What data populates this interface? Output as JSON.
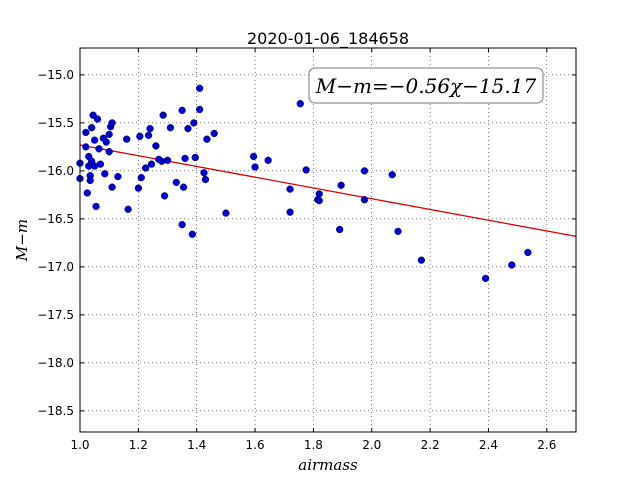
{
  "chart_data": {
    "type": "scatter",
    "title": "2020-01-06_184658",
    "xlabel": "airmass",
    "ylabel": "M−m",
    "xlim": [
      1.0,
      2.7
    ],
    "ylim": [
      -18.72,
      -14.72
    ],
    "y_inverted": true,
    "grid": true,
    "xticks": [
      1.0,
      1.2,
      1.4,
      1.6,
      1.8,
      2.0,
      2.2,
      2.4,
      2.6
    ],
    "xtick_labels": [
      "1.0",
      "1.2",
      "1.4",
      "1.6",
      "1.8",
      "2.0",
      "2.2",
      "2.4",
      "2.6"
    ],
    "yticks": [
      -15.0,
      -15.5,
      -16.0,
      -16.5,
      -17.0,
      -17.5,
      -18.0,
      -18.5
    ],
    "ytick_labels": [
      "−15.0",
      "−15.5",
      "−16.0",
      "−16.5",
      "−17.0",
      "−17.5",
      "−18.0",
      "−18.5"
    ],
    "annotation": "M−m=−0.56χ−15.17",
    "fit_line": {
      "slope": -0.56,
      "intercept": -15.17,
      "color": "#dd0000"
    },
    "point_color": "#0000cc",
    "points": [
      [
        1.0,
        -15.92
      ],
      [
        1.0,
        -16.08
      ],
      [
        1.02,
        -15.6
      ],
      [
        1.02,
        -15.75
      ],
      [
        1.025,
        -16.23
      ],
      [
        1.03,
        -15.85
      ],
      [
        1.03,
        -15.95
      ],
      [
        1.035,
        -16.05
      ],
      [
        1.035,
        -16.1
      ],
      [
        1.04,
        -15.55
      ],
      [
        1.04,
        -15.9
      ],
      [
        1.045,
        -15.42
      ],
      [
        1.05,
        -15.95
      ],
      [
        1.05,
        -15.68
      ],
      [
        1.055,
        -16.37
      ],
      [
        1.06,
        -15.46
      ],
      [
        1.065,
        -15.77
      ],
      [
        1.07,
        -15.93
      ],
      [
        1.08,
        -15.66
      ],
      [
        1.085,
        -16.03
      ],
      [
        1.09,
        -15.7
      ],
      [
        1.1,
        -15.62
      ],
      [
        1.1,
        -15.8
      ],
      [
        1.105,
        -15.54
      ],
      [
        1.11,
        -15.5
      ],
      [
        1.11,
        -16.17
      ],
      [
        1.13,
        -16.06
      ],
      [
        1.16,
        -15.67
      ],
      [
        1.165,
        -16.4
      ],
      [
        1.2,
        -16.18
      ],
      [
        1.205,
        -15.64
      ],
      [
        1.21,
        -16.07
      ],
      [
        1.225,
        -15.97
      ],
      [
        1.235,
        -15.63
      ],
      [
        1.24,
        -15.56
      ],
      [
        1.245,
        -15.93
      ],
      [
        1.26,
        -15.74
      ],
      [
        1.27,
        -15.88
      ],
      [
        1.28,
        -15.9
      ],
      [
        1.285,
        -15.42
      ],
      [
        1.29,
        -16.26
      ],
      [
        1.3,
        -15.89
      ],
      [
        1.31,
        -15.55
      ],
      [
        1.33,
        -16.12
      ],
      [
        1.35,
        -15.37
      ],
      [
        1.35,
        -16.56
      ],
      [
        1.355,
        -16.17
      ],
      [
        1.36,
        -15.87
      ],
      [
        1.37,
        -15.56
      ],
      [
        1.385,
        -16.66
      ],
      [
        1.39,
        -15.5
      ],
      [
        1.395,
        -15.86
      ],
      [
        1.41,
        -15.14
      ],
      [
        1.41,
        -15.36
      ],
      [
        1.425,
        -16.02
      ],
      [
        1.43,
        -16.09
      ],
      [
        1.435,
        -15.67
      ],
      [
        1.46,
        -15.61
      ],
      [
        1.5,
        -16.44
      ],
      [
        1.595,
        -15.85
      ],
      [
        1.6,
        -15.96
      ],
      [
        1.645,
        -15.89
      ],
      [
        1.72,
        -16.19
      ],
      [
        1.72,
        -16.43
      ],
      [
        1.755,
        -15.3
      ],
      [
        1.775,
        -15.99
      ],
      [
        1.815,
        -16.3
      ],
      [
        1.82,
        -16.24
      ],
      [
        1.82,
        -16.31
      ],
      [
        1.89,
        -16.61
      ],
      [
        1.895,
        -16.15
      ],
      [
        1.975,
        -16.3
      ],
      [
        1.975,
        -16.0
      ],
      [
        2.07,
        -16.04
      ],
      [
        2.09,
        -16.63
      ],
      [
        2.17,
        -16.93
      ],
      [
        2.39,
        -17.12
      ],
      [
        2.48,
        -16.98
      ],
      [
        2.535,
        -16.85
      ]
    ]
  }
}
